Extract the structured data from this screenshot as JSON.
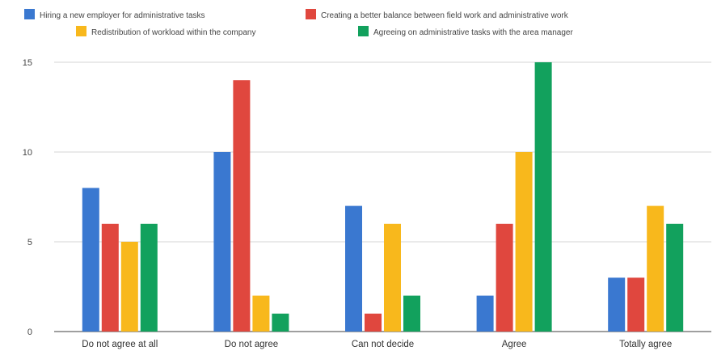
{
  "chart_data": {
    "type": "bar",
    "title": "",
    "xlabel": "",
    "ylabel": "",
    "categories": [
      "Do not agree at all",
      "Do not agree",
      "Can not decide",
      "Agree",
      "Totally agree"
    ],
    "series": [
      {
        "name": "Hiring a new employer for administrative tasks",
        "color": "#3a78d0",
        "values": [
          8,
          10,
          7,
          2,
          3
        ]
      },
      {
        "name": "Creating a better balance between field work and administrative work",
        "color": "#e0473e",
        "values": [
          6,
          14,
          1,
          6,
          3
        ]
      },
      {
        "name": "Redistribution of workload within the company",
        "color": "#f8b81c",
        "values": [
          5,
          2,
          6,
          10,
          7
        ]
      },
      {
        "name": "Agreeing on administrative tasks with the area manager",
        "color": "#12a15d",
        "values": [
          6,
          1,
          2,
          15,
          6
        ]
      }
    ],
    "ylim": [
      0,
      15
    ],
    "yticks": [
      "0",
      "5",
      "10",
      "15"
    ],
    "grid": true,
    "legend_position": "top"
  }
}
